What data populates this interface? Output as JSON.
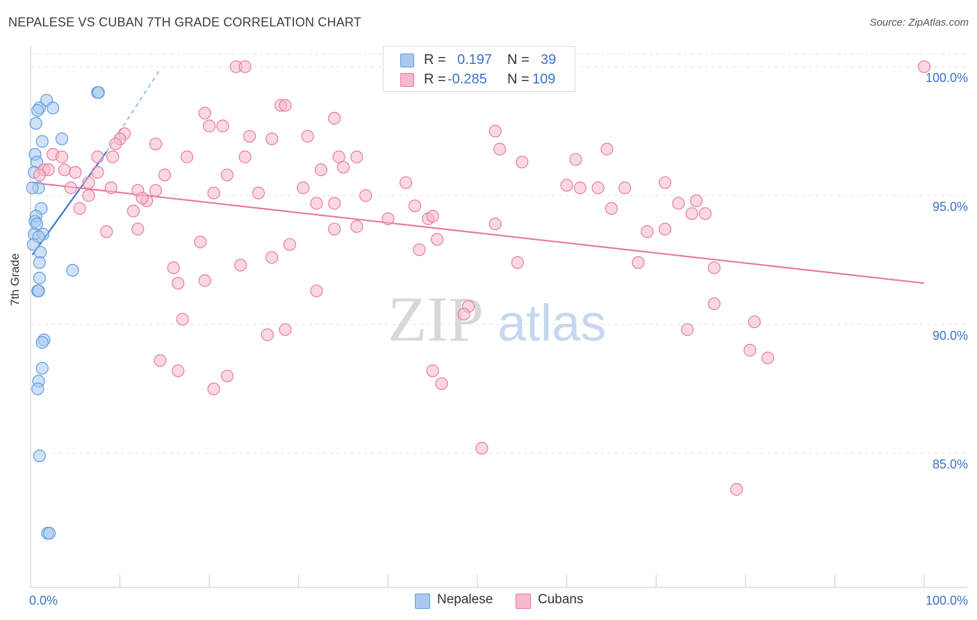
{
  "title": "NEPALESE VS CUBAN 7TH GRADE CORRELATION CHART",
  "source": "Source: ZipAtlas.com",
  "watermark": {
    "zip": "ZIP",
    "atlas": "atlas"
  },
  "legend": {
    "rows": [
      {
        "r_label": "R =",
        "r_value": "0.197",
        "n_label": "N =",
        "n_value": "39",
        "color": "#aac8ef"
      },
      {
        "r_label": "R =",
        "r_value": "-0.285",
        "n_label": "N =",
        "n_value": "109",
        "color": "#f6b8cb"
      }
    ]
  },
  "bottom_legend": [
    {
      "label": "Nepalese",
      "color": "#aac8ef"
    },
    {
      "label": "Cubans",
      "color": "#f6b8cb"
    }
  ],
  "chart_data": {
    "type": "scatter",
    "title": "NEPALESE VS CUBAN 7TH GRADE CORRELATION CHART",
    "xlabel": "",
    "ylabel": "7th Grade",
    "xlim": [
      0,
      100
    ],
    "ylim": [
      79.8,
      100.7
    ],
    "x_tick_labels": [
      "0.0%",
      "100.0%"
    ],
    "y_ticks": [
      85,
      90,
      95,
      100
    ],
    "y_tick_labels": [
      "85.0%",
      "90.0%",
      "95.0%",
      "100.0%"
    ],
    "grid": true,
    "series": [
      {
        "name": "Nepalese",
        "color": "#5b9be0",
        "fill": "#aac8ef",
        "trend": {
          "x0": 0.2,
          "y0": 92.7,
          "x1": 8.5,
          "y1": 96.7,
          "dash_to_x": 14.5,
          "dash_to_y": 99.9
        },
        "points": [
          [
            1.0,
            98.4
          ],
          [
            0.8,
            98.3
          ],
          [
            1.8,
            98.7
          ],
          [
            2.5,
            98.4
          ],
          [
            7.5,
            99.0
          ],
          [
            7.6,
            99.0
          ],
          [
            0.6,
            97.8
          ],
          [
            1.3,
            97.1
          ],
          [
            3.5,
            97.2
          ],
          [
            0.5,
            96.6
          ],
          [
            0.7,
            96.3
          ],
          [
            0.4,
            95.9
          ],
          [
            0.9,
            95.3
          ],
          [
            0.2,
            95.3
          ],
          [
            1.2,
            94.5
          ],
          [
            0.6,
            94.2
          ],
          [
            0.5,
            94.0
          ],
          [
            0.7,
            93.9
          ],
          [
            0.4,
            93.5
          ],
          [
            1.4,
            93.5
          ],
          [
            0.9,
            93.4
          ],
          [
            0.3,
            93.1
          ],
          [
            1.1,
            92.8
          ],
          [
            1.0,
            92.4
          ],
          [
            4.7,
            92.1
          ],
          [
            1.0,
            91.8
          ],
          [
            0.8,
            91.3
          ],
          [
            0.9,
            91.3
          ],
          [
            1.5,
            89.4
          ],
          [
            1.3,
            89.3
          ],
          [
            1.3,
            88.3
          ],
          [
            0.9,
            87.8
          ],
          [
            0.8,
            87.5
          ],
          [
            1.0,
            84.9
          ],
          [
            1.9,
            81.9
          ],
          [
            2.1,
            81.9
          ]
        ]
      },
      {
        "name": "Cubans",
        "color": "#e8799d",
        "fill": "#f6b8cb",
        "trend": {
          "x0": 0.2,
          "y0": 95.5,
          "x1": 100,
          "y1": 91.6
        },
        "points": [
          [
            23.0,
            100.0
          ],
          [
            24.0,
            100.0
          ],
          [
            100.0,
            100.0
          ],
          [
            28.0,
            98.5
          ],
          [
            28.5,
            98.5
          ],
          [
            19.5,
            98.2
          ],
          [
            34.0,
            98.0
          ],
          [
            20.0,
            97.7
          ],
          [
            21.5,
            97.7
          ],
          [
            52.0,
            97.5
          ],
          [
            24.5,
            97.3
          ],
          [
            27.0,
            97.2
          ],
          [
            31.0,
            97.3
          ],
          [
            10.5,
            97.4
          ],
          [
            10.0,
            97.2
          ],
          [
            9.5,
            97.0
          ],
          [
            14.0,
            97.0
          ],
          [
            2.5,
            96.6
          ],
          [
            3.5,
            96.5
          ],
          [
            7.5,
            96.5
          ],
          [
            9.2,
            96.5
          ],
          [
            17.5,
            96.5
          ],
          [
            24.0,
            96.5
          ],
          [
            34.5,
            96.5
          ],
          [
            36.5,
            96.5
          ],
          [
            52.5,
            96.8
          ],
          [
            55.0,
            96.3
          ],
          [
            61.0,
            96.4
          ],
          [
            64.5,
            96.8
          ],
          [
            1.5,
            96.0
          ],
          [
            2.0,
            96.0
          ],
          [
            1.0,
            95.8
          ],
          [
            3.8,
            96.0
          ],
          [
            5.0,
            95.9
          ],
          [
            7.5,
            95.9
          ],
          [
            15.0,
            95.8
          ],
          [
            22.0,
            95.8
          ],
          [
            32.5,
            96.0
          ],
          [
            35.0,
            96.1
          ],
          [
            42.0,
            95.5
          ],
          [
            60.0,
            95.4
          ],
          [
            61.5,
            95.3
          ],
          [
            63.5,
            95.3
          ],
          [
            66.5,
            95.3
          ],
          [
            71.0,
            95.5
          ],
          [
            4.5,
            95.3
          ],
          [
            6.5,
            95.5
          ],
          [
            9.0,
            95.3
          ],
          [
            12.0,
            95.2
          ],
          [
            14.0,
            95.2
          ],
          [
            20.5,
            95.1
          ],
          [
            25.5,
            95.1
          ],
          [
            30.5,
            95.3
          ],
          [
            37.5,
            95.0
          ],
          [
            13.0,
            94.8
          ],
          [
            12.5,
            94.9
          ],
          [
            6.5,
            95.0
          ],
          [
            32.0,
            94.7
          ],
          [
            34.0,
            94.7
          ],
          [
            43.0,
            94.6
          ],
          [
            65.0,
            94.5
          ],
          [
            72.5,
            94.7
          ],
          [
            74.5,
            94.8
          ],
          [
            5.5,
            94.5
          ],
          [
            11.5,
            94.4
          ],
          [
            40.0,
            94.1
          ],
          [
            44.5,
            94.1
          ],
          [
            45.0,
            94.2
          ],
          [
            74.0,
            94.3
          ],
          [
            75.5,
            94.3
          ],
          [
            8.5,
            93.6
          ],
          [
            12.0,
            93.7
          ],
          [
            34.0,
            93.7
          ],
          [
            36.5,
            93.8
          ],
          [
            52.0,
            93.9
          ],
          [
            69.0,
            93.6
          ],
          [
            71.0,
            93.7
          ],
          [
            19.0,
            93.2
          ],
          [
            29.0,
            93.1
          ],
          [
            45.5,
            93.3
          ],
          [
            43.5,
            92.9
          ],
          [
            27.0,
            92.6
          ],
          [
            23.5,
            92.3
          ],
          [
            54.5,
            92.4
          ],
          [
            68.0,
            92.4
          ],
          [
            76.5,
            92.2
          ],
          [
            16.0,
            92.2
          ],
          [
            16.5,
            91.6
          ],
          [
            19.5,
            91.7
          ],
          [
            32.0,
            91.3
          ],
          [
            49.0,
            90.7
          ],
          [
            48.5,
            90.4
          ],
          [
            76.5,
            90.8
          ],
          [
            17.0,
            90.2
          ],
          [
            28.5,
            89.8
          ],
          [
            26.5,
            89.6
          ],
          [
            73.5,
            89.8
          ],
          [
            81.0,
            90.1
          ],
          [
            14.5,
            88.6
          ],
          [
            16.5,
            88.2
          ],
          [
            20.5,
            87.5
          ],
          [
            22.0,
            88.0
          ],
          [
            45.0,
            88.2
          ],
          [
            46.0,
            87.7
          ],
          [
            80.5,
            89.0
          ],
          [
            82.5,
            88.7
          ],
          [
            50.5,
            85.2
          ],
          [
            79.0,
            83.6
          ]
        ]
      }
    ]
  }
}
